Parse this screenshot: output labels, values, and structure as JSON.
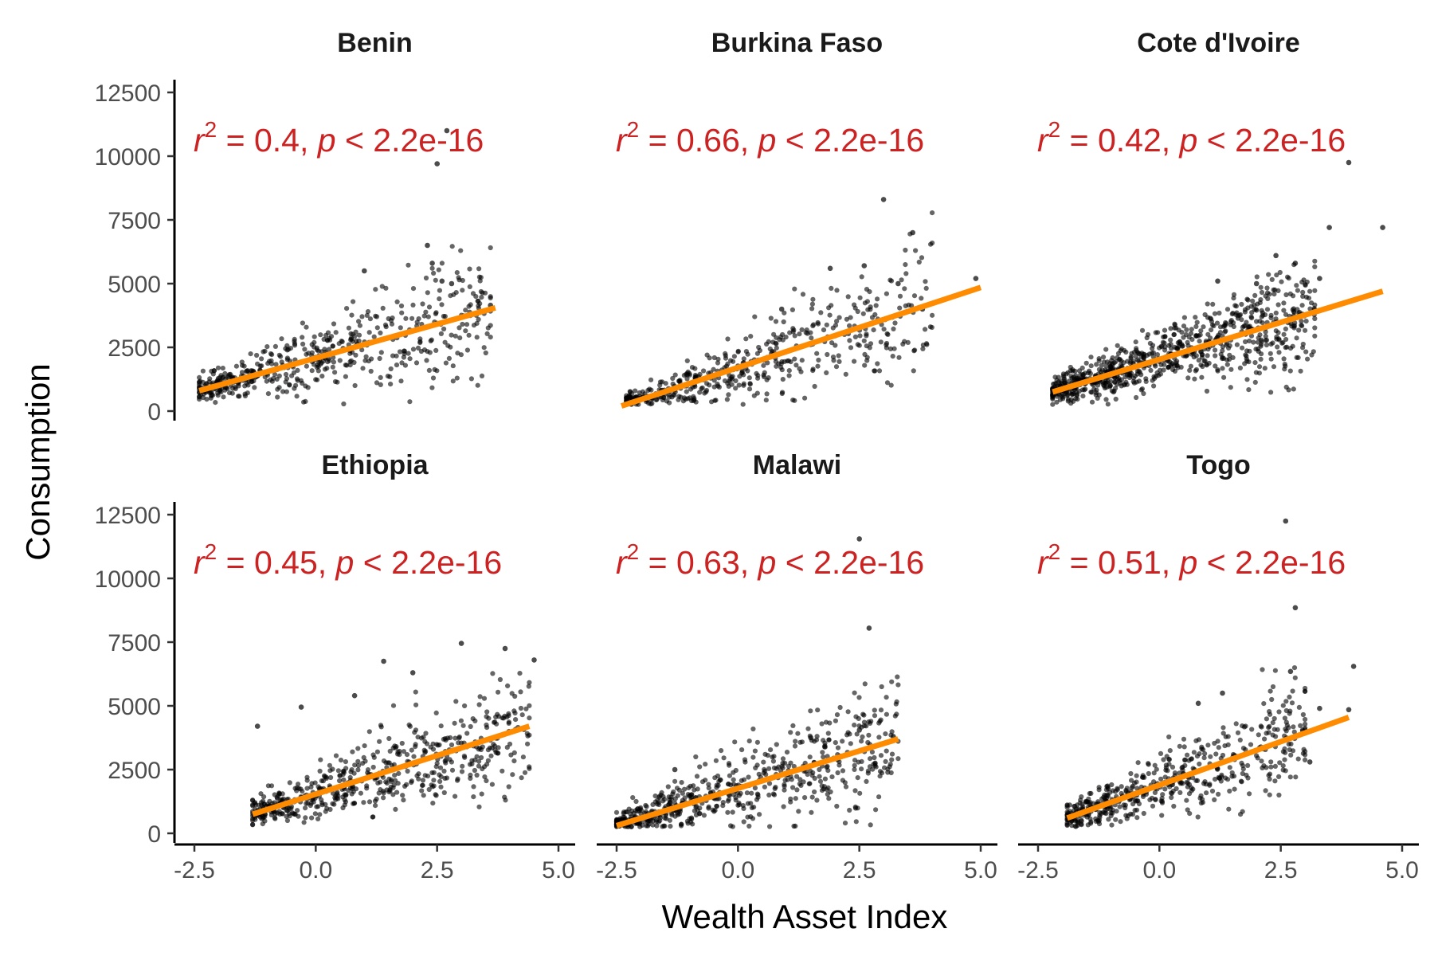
{
  "chart_data": {
    "type": "scatter",
    "layout": "facet-grid 2x3",
    "xlabel": "Wealth Asset Index",
    "ylabel": "Consumption",
    "xlim": [
      -2.6,
      5.1
    ],
    "ylim": [
      -300,
      12800
    ],
    "x_ticks": [
      -2.5,
      0.0,
      2.5,
      5.0
    ],
    "x_tick_labels": [
      "-2.5",
      "0.0",
      "2.5",
      "5.0"
    ],
    "y_ticks": [
      0,
      2500,
      5000,
      7500,
      10000,
      12500
    ],
    "y_tick_labels": [
      "0",
      "2500",
      "5000",
      "7500",
      "10000",
      "12500"
    ],
    "grid": false,
    "colors": {
      "points": "#000000",
      "fit_line": "#ff8c00",
      "stat_text": "#cc2222"
    },
    "panels": [
      {
        "title": "Benin",
        "stat": {
          "r2": "0.4",
          "p": "2.2e-16"
        },
        "fit_line": {
          "x": [
            -2.4,
            3.7
          ],
          "y": [
            800,
            4050
          ]
        },
        "point_cloud": {
          "n": 520,
          "x_range": [
            -2.4,
            3.6
          ]
        },
        "outliers": [
          {
            "x": 2.5,
            "y": 9700
          },
          {
            "x": 2.7,
            "y": 11000
          },
          {
            "x": 2.3,
            "y": 6500
          },
          {
            "x": 2.6,
            "y": 5100
          },
          {
            "x": 2.8,
            "y": 5000
          },
          {
            "x": 2.4,
            "y": 5800
          },
          {
            "x": 1.0,
            "y": 5500
          },
          {
            "x": 3.6,
            "y": 4150
          }
        ]
      },
      {
        "title": "Burkina Faso",
        "stat": {
          "r2": "0.66",
          "p": "2.2e-16"
        },
        "fit_line": {
          "x": [
            -2.4,
            5.0
          ],
          "y": [
            200,
            4850
          ]
        },
        "point_cloud": {
          "n": 480,
          "x_range": [
            -2.3,
            4.0
          ]
        },
        "outliers": [
          {
            "x": 3.0,
            "y": 8300
          },
          {
            "x": 3.6,
            "y": 7000
          },
          {
            "x": 1.9,
            "y": 5600
          },
          {
            "x": 2.6,
            "y": 5700
          },
          {
            "x": 3.3,
            "y": 5000
          },
          {
            "x": 4.9,
            "y": 5200
          },
          {
            "x": 0.9,
            "y": 4000
          },
          {
            "x": 3.8,
            "y": 4000
          }
        ]
      },
      {
        "title": "Cote d'Ivoire",
        "stat": {
          "r2": "0.42",
          "p": "2.2e-16"
        },
        "fit_line": {
          "x": [
            -2.2,
            4.6
          ],
          "y": [
            750,
            4700
          ]
        },
        "point_cloud": {
          "n": 820,
          "x_range": [
            -2.2,
            3.2
          ]
        },
        "outliers": [
          {
            "x": 3.9,
            "y": 9750
          },
          {
            "x": 3.5,
            "y": 7200
          },
          {
            "x": 4.6,
            "y": 7200
          },
          {
            "x": 2.4,
            "y": 6100
          },
          {
            "x": 2.8,
            "y": 5800
          },
          {
            "x": 3.3,
            "y": 5200
          },
          {
            "x": 1.2,
            "y": 5100
          },
          {
            "x": 2.0,
            "y": 5000
          }
        ]
      },
      {
        "title": "Ethiopia",
        "stat": {
          "r2": "0.45",
          "p": "2.2e-16"
        },
        "fit_line": {
          "x": [
            -1.3,
            4.4
          ],
          "y": [
            750,
            4200
          ]
        },
        "point_cloud": {
          "n": 560,
          "x_range": [
            -1.3,
            4.4
          ]
        },
        "outliers": [
          {
            "x": 3.0,
            "y": 7450
          },
          {
            "x": 3.9,
            "y": 7250
          },
          {
            "x": 4.5,
            "y": 6800
          },
          {
            "x": 1.4,
            "y": 6750
          },
          {
            "x": 2.0,
            "y": 6300
          },
          {
            "x": -0.3,
            "y": 4950
          },
          {
            "x": 0.8,
            "y": 5400
          },
          {
            "x": -1.2,
            "y": 4200
          }
        ]
      },
      {
        "title": "Malawi",
        "stat": {
          "r2": "0.63",
          "p": "2.2e-16"
        },
        "fit_line": {
          "x": [
            -2.5,
            3.3
          ],
          "y": [
            300,
            3700
          ]
        },
        "point_cloud": {
          "n": 620,
          "x_range": [
            -2.5,
            3.3
          ]
        },
        "outliers": [
          {
            "x": 2.5,
            "y": 11550
          },
          {
            "x": 2.7,
            "y": 8050
          },
          {
            "x": 2.5,
            "y": 4050
          },
          {
            "x": 3.2,
            "y": 3800
          },
          {
            "x": 1.5,
            "y": 3750
          },
          {
            "x": -1.3,
            "y": 2500
          }
        ]
      },
      {
        "title": "Togo",
        "stat": {
          "r2": "0.51",
          "p": "2.2e-16"
        },
        "fit_line": {
          "x": [
            -1.9,
            3.9
          ],
          "y": [
            600,
            4550
          ]
        },
        "point_cloud": {
          "n": 520,
          "x_range": [
            -1.9,
            3.0
          ]
        },
        "outliers": [
          {
            "x": 2.6,
            "y": 12250
          },
          {
            "x": 2.8,
            "y": 8850
          },
          {
            "x": 4.0,
            "y": 6550
          },
          {
            "x": 2.7,
            "y": 6350
          },
          {
            "x": 1.3,
            "y": 5500
          },
          {
            "x": 0.8,
            "y": 5100
          },
          {
            "x": 3.3,
            "y": 4900
          },
          {
            "x": 3.9,
            "y": 4850
          },
          {
            "x": 3.1,
            "y": 2800
          }
        ]
      }
    ]
  }
}
